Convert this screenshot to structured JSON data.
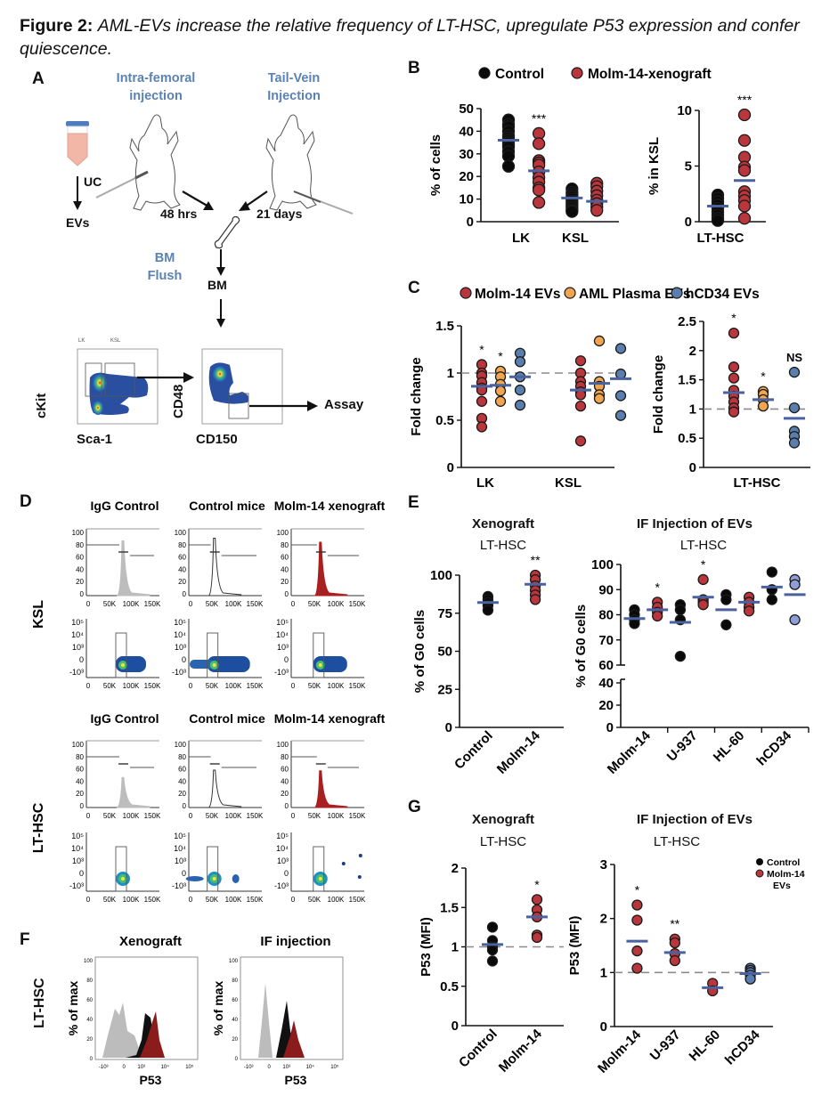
{
  "figure": {
    "label": "Figure 2:",
    "caption": "AML-EVs increase the relative frequency of LT-HSC, upregulate P53 expression and confer quiescence."
  },
  "colors": {
    "control": "#0a0a0a",
    "molm14": "#b8363c",
    "aml_plasma": "#f0a650",
    "hcd34": "#5a7fae",
    "hcd34_light": "#8f9fd6",
    "mean_bar": "#4a62a0",
    "ref_line": "#8c8c8c",
    "diagram_blue": "#5b82b3",
    "tube": "#f2b7a6",
    "tube_cap": "#4d7fc0"
  },
  "panelA": {
    "label": "A",
    "intra_femoral": "Intra-femoral injection",
    "intra_femoral_l1": "Intra-femoral",
    "intra_femoral_l2": "injection",
    "tail_vein_l1": "Tail-Vein",
    "tail_vein_l2": "Injection",
    "uc": "UC",
    "evs": "EVs",
    "hrs48": "48 hrs",
    "days21": "21 days",
    "bm_flush_l1": "BM",
    "bm_flush_l2": "Flush",
    "bm": "BM",
    "assay": "Assay",
    "facs1_y": "cKit",
    "facs1_x": "Sca-1",
    "facs2_y": "CD48",
    "facs2_x": "CD150",
    "gate_lk": "LK",
    "gate_ksl": "KSL"
  },
  "panelD": {
    "label": "D",
    "columns": [
      "IgG Control",
      "Control mice",
      "Molm-14 xenograft"
    ],
    "rows": [
      "KSL",
      "LT-HSC"
    ],
    "hist_yticks": [
      "100",
      "80",
      "60",
      "40",
      "20",
      "0"
    ],
    "xticks": [
      "0",
      "50K",
      "100K",
      "150K"
    ],
    "dens_yticks": [
      "10^5",
      "10^4",
      "10^3",
      "0",
      "-10^3"
    ]
  },
  "panelF": {
    "label": "F",
    "row": "LT-HSC",
    "titles": [
      "Xenograft",
      "IF injection"
    ],
    "ylabel": "% of max",
    "xlabel": "P53",
    "yticks": [
      "100",
      "80",
      "60",
      "40",
      "20",
      "0"
    ],
    "xticks": [
      "-10^3",
      "0",
      "10^3",
      "10^4",
      "10^5"
    ]
  },
  "chart_data": [
    {
      "id": "B-left",
      "panel": "B",
      "type": "scatter",
      "legend": [
        {
          "name": "Control",
          "color": "#0a0a0a"
        },
        {
          "name": "Molm-14-xenograft",
          "color": "#b8363c"
        }
      ],
      "legend_placement": "top",
      "ylabel": "% of cells",
      "ylim": [
        0,
        50
      ],
      "yticks": [
        0,
        10,
        20,
        30,
        40,
        50
      ],
      "categories": [
        "LK",
        "KSL"
      ],
      "groups": [
        {
          "category": "LK",
          "series": "Control",
          "values": [
            45,
            43,
            42,
            40,
            38,
            37,
            36,
            35,
            34,
            33,
            31,
            29,
            24.5
          ],
          "mean": 36
        },
        {
          "category": "LK",
          "series": "Molm-14-xenograft",
          "values": [
            39,
            34.5,
            27,
            26,
            25,
            22,
            19.5,
            17.5,
            15,
            14,
            8.5
          ],
          "mean": 22.5
        },
        {
          "category": "KSL",
          "series": "Control",
          "values": [
            14.5,
            13,
            12,
            11,
            10,
            9,
            8,
            7,
            6,
            5,
            4.5
          ],
          "mean": 10.5
        },
        {
          "category": "KSL",
          "series": "Molm-14-xenograft",
          "values": [
            17,
            15.5,
            13.5,
            11.5,
            9.5,
            8,
            6.5,
            5
          ],
          "mean": 9
        }
      ],
      "annotations": [
        {
          "category": "LK",
          "text": "***"
        }
      ]
    },
    {
      "id": "B-right",
      "panel": "B",
      "type": "scatter",
      "ylabel": "% in KSL",
      "ylim": [
        0,
        10
      ],
      "yticks": [
        0,
        5,
        10
      ],
      "categories": [
        "LT-HSC"
      ],
      "groups": [
        {
          "category": "LT-HSC",
          "series": "Control",
          "values": [
            2.4,
            2.1,
            1.8,
            1.5,
            1.2,
            0.9,
            0.6,
            0.3,
            0.1
          ],
          "mean": 1.4
        },
        {
          "category": "LT-HSC",
          "series": "Molm-14-xenograft",
          "values": [
            9.6,
            7.3,
            5.8,
            4.9,
            4.6,
            2.7,
            2.3,
            1.9,
            1.4,
            0.3
          ],
          "mean": 3.7
        }
      ],
      "annotations": [
        {
          "category": "LT-HSC",
          "text": "***"
        }
      ]
    },
    {
      "id": "C-left",
      "panel": "C",
      "type": "scatter",
      "legend": [
        {
          "name": "Molm-14 EVs",
          "color": "#b8363c"
        },
        {
          "name": "AML Plasma EVs",
          "color": "#f0a650"
        },
        {
          "name": "hCD34 EVs",
          "color": "#5a7fae"
        }
      ],
      "legend_placement": "top",
      "ylabel": "Fold change",
      "ylim": [
        0,
        1.5
      ],
      "yticks": [
        0,
        0.5,
        1,
        1.5
      ],
      "reference_line": 1,
      "categories": [
        "LK",
        "KSL"
      ],
      "groups": [
        {
          "category": "LK",
          "series": "Molm-14 EVs",
          "values": [
            1.09,
            1.0,
            0.97,
            0.9,
            0.84,
            0.82,
            0.7,
            0.52,
            0.43
          ],
          "mean": 0.86
        },
        {
          "category": "LK",
          "series": "AML Plasma EVs",
          "values": [
            1.02,
            0.96,
            0.88,
            0.81,
            0.7
          ],
          "mean": 0.87
        },
        {
          "category": "LK",
          "series": "hCD34 EVs",
          "values": [
            1.21,
            1.12,
            0.96,
            0.82,
            0.66
          ],
          "mean": 0.96
        },
        {
          "category": "KSL",
          "series": "Molm-14 EVs",
          "values": [
            1.13,
            1.0,
            0.91,
            0.86,
            0.8,
            0.77,
            0.65,
            0.28
          ],
          "mean": 0.82
        },
        {
          "category": "KSL",
          "series": "AML Plasma EVs",
          "values": [
            1.34,
            0.91,
            0.86,
            0.77,
            0.73
          ],
          "mean": 0.89
        },
        {
          "category": "KSL",
          "series": "hCD34 EVs",
          "values": [
            1.26,
            0.99,
            0.76,
            0.55
          ],
          "mean": 0.94
        }
      ],
      "annotations": [
        {
          "category": "LK",
          "series": "Molm-14 EVs",
          "text": "*"
        },
        {
          "category": "LK",
          "series": "AML Plasma EVs",
          "text": "*"
        }
      ]
    },
    {
      "id": "C-right",
      "panel": "C",
      "type": "scatter",
      "ylabel": "Fold change",
      "ylim": [
        0,
        2.5
      ],
      "yticks": [
        0,
        0.5,
        1,
        1.5,
        2,
        2.5
      ],
      "reference_line": 1,
      "categories": [
        "LT-HSC"
      ],
      "groups": [
        {
          "category": "LT-HSC",
          "series": "Molm-14 EVs",
          "values": [
            2.3,
            1.72,
            1.53,
            1.32,
            1.22,
            1.12,
            1.02,
            0.95
          ],
          "mean": 1.28
        },
        {
          "category": "LT-HSC",
          "series": "AML Plasma EVs",
          "values": [
            1.3,
            1.25,
            1.16,
            1.05
          ],
          "mean": 1.16
        },
        {
          "category": "LT-HSC",
          "series": "hCD34 EVs",
          "values": [
            1.63,
            1.02,
            0.62,
            0.53,
            0.42
          ],
          "mean": 0.84
        }
      ],
      "annotations": [
        {
          "series": "Molm-14 EVs",
          "text": "*"
        },
        {
          "series": "AML Plasma EVs",
          "text": "*"
        },
        {
          "series": "hCD34 EVs",
          "text": "NS"
        }
      ]
    },
    {
      "id": "E-left",
      "panel": "E",
      "type": "scatter",
      "title": "Xenograft",
      "subtitle": "LT-HSC",
      "ylabel": "% of G0 cells",
      "ylim": [
        0,
        100
      ],
      "yticks": [
        0,
        25,
        50,
        75,
        100
      ],
      "categories": [
        "Control",
        "Molm-14"
      ],
      "groups": [
        {
          "category": "Control",
          "series": "Control",
          "values": [
            86,
            84,
            82,
            80,
            77
          ],
          "mean": 82
        },
        {
          "category": "Molm-14",
          "series": "Molm-14",
          "values": [
            100,
            97,
            93,
            90,
            87,
            84
          ],
          "mean": 94
        }
      ],
      "annotations": [
        {
          "category": "Molm-14",
          "text": "**"
        }
      ]
    },
    {
      "id": "E-right",
      "panel": "E",
      "type": "scatter",
      "title": "IF Injection of EVs",
      "subtitle": "LT-HSC",
      "ylabel": "% of G0 cells",
      "ylim": [
        0,
        100
      ],
      "axis_break": [
        40,
        60
      ],
      "yticks": [
        0,
        20,
        40,
        60,
        70,
        80,
        90,
        100
      ],
      "categories": [
        "Molm-14",
        "U-937",
        "HL-60",
        "hCD34"
      ],
      "groups": [
        {
          "category": "Molm-14",
          "series": "Control",
          "values": [
            82,
            80,
            78,
            76.5
          ],
          "mean": 78.5
        },
        {
          "category": "Molm-14",
          "series": "EVs",
          "values": [
            85,
            83,
            81,
            79.5
          ],
          "mean": 82
        },
        {
          "category": "U-937",
          "series": "Control",
          "values": [
            84,
            82,
            78,
            63.5
          ],
          "mean": 77
        },
        {
          "category": "U-937",
          "series": "EVs",
          "values": [
            94,
            86,
            85,
            84
          ],
          "mean": 87
        },
        {
          "category": "HL-60",
          "series": "Control",
          "values": [
            88,
            86,
            76
          ],
          "mean": 82
        },
        {
          "category": "HL-60",
          "series": "EVs",
          "values": [
            87,
            85,
            83,
            81.5
          ],
          "mean": 85
        },
        {
          "category": "hCD34",
          "series": "Control",
          "values": [
            97,
            90,
            86
          ],
          "mean": 91
        },
        {
          "category": "hCD34",
          "series": "EVs",
          "values": [
            94,
            92,
            78
          ],
          "mean": 88
        }
      ],
      "annotations": [
        {
          "category": "Molm-14",
          "series": "EVs",
          "text": "*"
        },
        {
          "category": "U-937",
          "series": "EVs",
          "text": "*"
        }
      ]
    },
    {
      "id": "G-left",
      "panel": "G",
      "type": "scatter",
      "title": "Xenograft",
      "subtitle": "LT-HSC",
      "ylabel": "P53 (MFI)",
      "ylim": [
        0,
        2
      ],
      "yticks": [
        0,
        0.5,
        1,
        1.5,
        2
      ],
      "reference_line": 1,
      "categories": [
        "Control",
        "Molm-14"
      ],
      "groups": [
        {
          "category": "Control",
          "series": "Control",
          "values": [
            1.25,
            1.08,
            1.0,
            0.96,
            0.82
          ],
          "mean": 1.03
        },
        {
          "category": "Molm-14",
          "series": "Molm-14",
          "values": [
            1.6,
            1.47,
            1.38,
            1.15,
            1.12
          ],
          "mean": 1.38
        }
      ],
      "annotations": [
        {
          "category": "Molm-14",
          "text": "*"
        }
      ]
    },
    {
      "id": "G-right",
      "panel": "G",
      "type": "scatter",
      "title": "IF Injection of EVs",
      "subtitle": "LT-HSC",
      "legend": [
        {
          "name": "Control",
          "color": "#0a0a0a"
        },
        {
          "name": "Molm-14 EVs",
          "color": "#b8363c"
        }
      ],
      "legend_placement": "top-right",
      "ylabel": "P53 (MFI)",
      "ylim": [
        0,
        3
      ],
      "yticks": [
        0,
        1,
        2,
        3
      ],
      "reference_line": 1,
      "categories": [
        "Molm-14",
        "U-937",
        "HL-60",
        "hCD34"
      ],
      "groups": [
        {
          "category": "Molm-14",
          "series": "EVs",
          "values": [
            2.25,
            1.97,
            1.4,
            1.08
          ],
          "mean": 1.58
        },
        {
          "category": "U-937",
          "series": "EVs",
          "values": [
            1.62,
            1.55,
            1.35,
            1.22
          ],
          "mean": 1.37
        },
        {
          "category": "HL-60",
          "series": "EVs",
          "values": [
            0.8,
            0.66
          ],
          "mean": 0.72
        },
        {
          "category": "hCD34",
          "series": "hCD34",
          "values": [
            1.08,
            1.04,
            1.0,
            0.95,
            0.88
          ],
          "mean": 0.98
        }
      ],
      "annotations": [
        {
          "category": "Molm-14",
          "text": "*"
        },
        {
          "category": "U-937",
          "text": "**"
        }
      ]
    }
  ],
  "panels": {
    "B": "B",
    "C": "C",
    "E": "E",
    "G": "G",
    "E_left_title": "Xenograft",
    "E_left_sub": "LT-HSC",
    "E_right_title": "IF Injection of EVs",
    "E_right_sub": "LT-HSC",
    "G_left_title": "Xenograft",
    "G_left_sub": "LT-HSC",
    "G_right_title": "IF Injection of EVs",
    "G_right_sub": "LT-HSC",
    "G_legend_control": "Control",
    "G_legend_molm_l1": "Molm-14",
    "G_legend_molm_l2": "EVs"
  }
}
